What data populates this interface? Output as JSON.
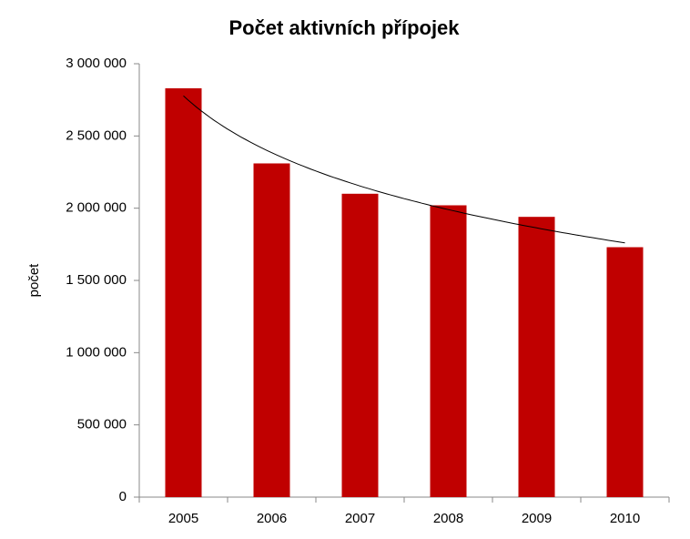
{
  "chart_data": {
    "type": "bar",
    "title": "Počet aktivních přípojek",
    "y_label": "počet",
    "categories": [
      "2005",
      "2006",
      "2007",
      "2008",
      "2009",
      "2010"
    ],
    "values": [
      2830000,
      2310000,
      2100000,
      2020000,
      1940000,
      1730000
    ],
    "color": "#c00000",
    "trendline": "logarithmic",
    "ylim": [
      0,
      3000000
    ],
    "yticks": [
      0,
      {
        "value": 500000,
        "label": "500 000"
      },
      {
        "value": 1000000,
        "label": "1 000 000"
      },
      {
        "value": 1500000,
        "label": "1 500 000"
      },
      {
        "value": 2000000,
        "label": "2 000 000"
      },
      {
        "value": 2500000,
        "label": "2 500 000"
      },
      {
        "value": 3000000,
        "label": "3 000 000"
      }
    ],
    "grid": false
  }
}
